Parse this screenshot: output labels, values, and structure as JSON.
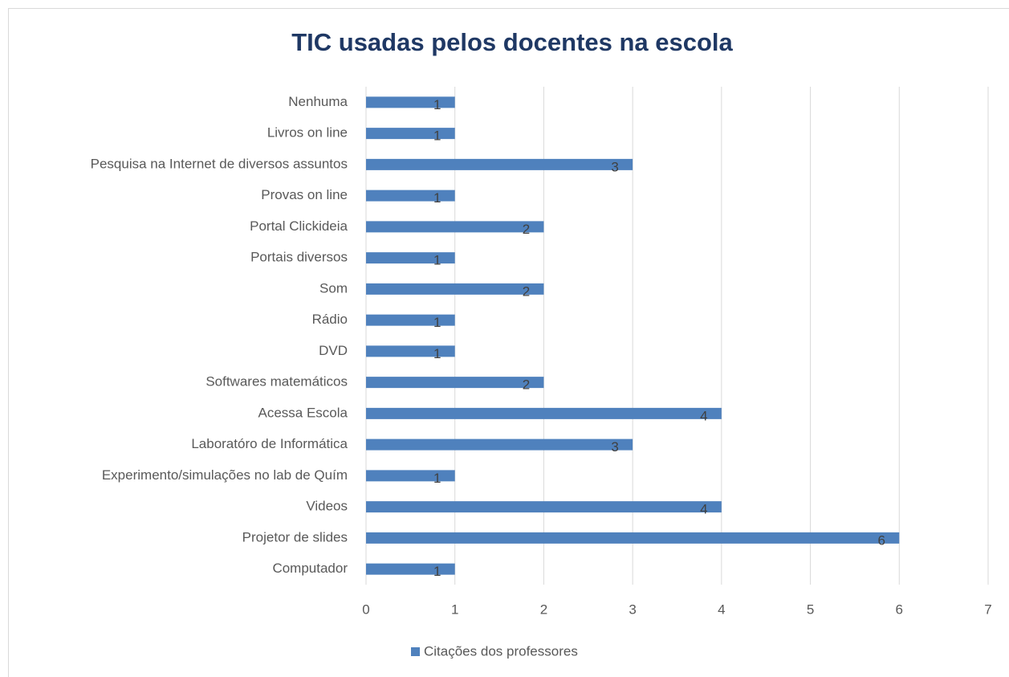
{
  "chart_data": {
    "type": "hbar",
    "title": "TIC usadas pelos docentes na escola",
    "categories": [
      "Nenhuma",
      "Livros on line",
      "Pesquisa na Internet de diversos assuntos",
      "Provas on line",
      "Portal Clickideia",
      "Portais diversos",
      "Som",
      "Rádio",
      "DVD",
      "Softwares matemáticos",
      "Acessa Escola",
      "Laboratóro de Informática",
      "Experimento/simulações no lab de Quím",
      "Videos",
      "Projetor de slides",
      "Computador"
    ],
    "series": [
      {
        "name": "Citações dos professores",
        "color": "#4f81bd",
        "values": [
          1,
          1,
          3,
          1,
          2,
          1,
          2,
          1,
          1,
          2,
          4,
          3,
          1,
          4,
          6,
          1
        ]
      }
    ],
    "xlim": [
      0,
      7
    ],
    "xticks": [
      0,
      1,
      2,
      3,
      4,
      5,
      6,
      7
    ],
    "grid": true,
    "legend": "bottom"
  }
}
